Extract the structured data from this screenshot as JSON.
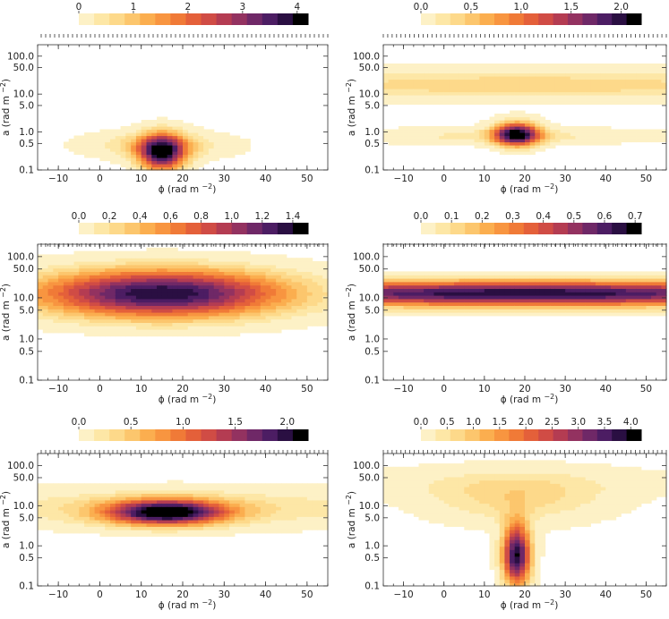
{
  "chart_data": [
    {
      "type": "heatmap",
      "colorbar": {
        "ticks": [
          0,
          1,
          2,
          3,
          4
        ],
        "labels": [
          "0",
          "1",
          "2",
          "3",
          "4"
        ],
        "max": 4.2
      },
      "xlabel": "ϕ  (rad m",
      "xlabel_sup": "−2",
      "xlabel_close": ")",
      "ylabel": "a (rad m",
      "ylabel_sup": "−2",
      "ylabel_close": ")",
      "xlim": [
        -15,
        55
      ],
      "xticks": [
        -10,
        0,
        10,
        20,
        30,
        40,
        50
      ],
      "xtick_labels": [
        "−10",
        "0",
        "10",
        "20",
        "30",
        "40",
        "50"
      ],
      "ylim": [
        0.1,
        200
      ],
      "yticks": [
        0.1,
        0.5,
        1.0,
        5.0,
        10.0,
        50.0,
        100.0
      ],
      "ytick_labels": [
        "0.1",
        "0.5",
        "1.0",
        "5.0",
        "10.0",
        "50.0",
        "100.0"
      ],
      "features": [
        {
          "phi": 15,
          "a": 0.3,
          "peak": 4.0,
          "sphi": 4,
          "sa": 0.35
        },
        {
          "phi": 14,
          "a": 0.45,
          "peak": 1.0,
          "sphi": 12,
          "sa": 0.25
        }
      ]
    },
    {
      "type": "heatmap",
      "colorbar": {
        "ticks": [
          0.0,
          0.5,
          1.0,
          1.5,
          2.0
        ],
        "labels": [
          "0.0",
          "0.5",
          "1.0",
          "1.5",
          "2.0"
        ],
        "max": 2.2
      },
      "xlabel": "ϕ  (rad m",
      "xlabel_sup": "−2",
      "xlabel_close": ")",
      "ylabel": "a (rad m",
      "ylabel_sup": "−2",
      "ylabel_close": ")",
      "xlim": [
        -15,
        55
      ],
      "xticks": [
        -10,
        0,
        10,
        20,
        30,
        40,
        50
      ],
      "xtick_labels": [
        "−10",
        "0",
        "10",
        "20",
        "30",
        "40",
        "50"
      ],
      "ylim": [
        0.1,
        200
      ],
      "yticks": [
        0.1,
        0.5,
        1.0,
        5.0,
        10.0,
        50.0,
        100.0
      ],
      "ytick_labels": [
        "0.1",
        "0.5",
        "1.0",
        "5.0",
        "10.0",
        "50.0",
        "100.0"
      ],
      "features": [
        {
          "phi": 20,
          "a": 18,
          "peak": 0.55,
          "sphi": 60,
          "sa": 0.28
        },
        {
          "phi": 18,
          "a": 0.9,
          "peak": 2.2,
          "sphi": 4,
          "sa": 0.22
        },
        {
          "phi": 15,
          "a": 0.8,
          "peak": 0.35,
          "sphi": 30,
          "sa": 0.15
        }
      ]
    },
    {
      "type": "heatmap",
      "colorbar": {
        "ticks": [
          0.0,
          0.2,
          0.4,
          0.6,
          0.8,
          1.0,
          1.2,
          1.4
        ],
        "labels": [
          "0.0",
          "0.2",
          "0.4",
          "0.6",
          "0.8",
          "1.0",
          "1.2",
          "1.4"
        ],
        "max": 1.5
      },
      "xlabel": "ϕ  (rad m",
      "xlabel_sup": "−2",
      "xlabel_close": ")",
      "ylabel": "a (rad m",
      "ylabel_sup": "−2",
      "ylabel_close": ")",
      "xlim": [
        -15,
        55
      ],
      "xticks": [
        -10,
        0,
        10,
        20,
        30,
        40,
        50
      ],
      "xtick_labels": [
        "−10",
        "0",
        "10",
        "20",
        "30",
        "40",
        "50"
      ],
      "ylim": [
        0.1,
        200
      ],
      "yticks": [
        0.1,
        0.5,
        1.0,
        5.0,
        10.0,
        50.0,
        100.0
      ],
      "ytick_labels": [
        "0.1",
        "0.5",
        "1.0",
        "5.0",
        "10.0",
        "50.0",
        "100.0"
      ],
      "features": [
        {
          "phi": 15,
          "a": 13,
          "peak": 1.5,
          "sphi": 22,
          "sa": 0.42
        }
      ]
    },
    {
      "type": "heatmap",
      "colorbar": {
        "ticks": [
          0.0,
          0.1,
          0.2,
          0.3,
          0.4,
          0.5,
          0.6,
          0.7
        ],
        "labels": [
          "0.0",
          "0.1",
          "0.2",
          "0.3",
          "0.4",
          "0.5",
          "0.6",
          "0.7"
        ],
        "max": 0.72
      },
      "xlabel": "ϕ  (rad m",
      "xlabel_sup": "−2",
      "xlabel_close": ")",
      "ylabel": "a (rad m",
      "ylabel_sup": "−2",
      "ylabel_close": ")",
      "xlim": [
        -15,
        55
      ],
      "xticks": [
        -10,
        0,
        10,
        20,
        30,
        40,
        50
      ],
      "xtick_labels": [
        "−10",
        "0",
        "10",
        "20",
        "30",
        "40",
        "50"
      ],
      "ylim": [
        0.1,
        200
      ],
      "yticks": [
        0.1,
        0.5,
        1.0,
        5.0,
        10.0,
        50.0,
        100.0
      ],
      "ytick_labels": [
        "0.1",
        "0.5",
        "1.0",
        "5.0",
        "10.0",
        "50.0",
        "100.0"
      ],
      "features": [
        {
          "phi": 20,
          "a": 13,
          "peak": 0.72,
          "sphi": 60,
          "sa": 0.22
        }
      ]
    },
    {
      "type": "heatmap",
      "colorbar": {
        "ticks": [
          0.0,
          0.5,
          1.0,
          1.5,
          2.0
        ],
        "labels": [
          "0.0",
          "0.5",
          "1.0",
          "1.5",
          "2.0"
        ],
        "max": 2.2
      },
      "xlabel": "ϕ  (rad m",
      "xlabel_sup": "−2",
      "xlabel_close": ")",
      "ylabel": "a (rad m",
      "ylabel_sup": "−2",
      "ylabel_close": ")",
      "xlim": [
        -15,
        55
      ],
      "xticks": [
        -10,
        0,
        10,
        20,
        30,
        40,
        50
      ],
      "xtick_labels": [
        "−10",
        "0",
        "10",
        "20",
        "30",
        "40",
        "50"
      ],
      "ylim": [
        0.1,
        200
      ],
      "yticks": [
        0.1,
        0.5,
        1.0,
        5.0,
        10.0,
        50.0,
        100.0
      ],
      "ytick_labels": [
        "0.1",
        "0.5",
        "1.0",
        "5.0",
        "10.0",
        "50.0",
        "100.0"
      ],
      "features": [
        {
          "phi": 16,
          "a": 7,
          "peak": 2.2,
          "sphi": 10,
          "sa": 0.22
        },
        {
          "phi": 20,
          "a": 9,
          "peak": 0.45,
          "sphi": 45,
          "sa": 0.35
        }
      ]
    },
    {
      "type": "heatmap",
      "colorbar": {
        "ticks": [
          0.0,
          0.5,
          1.0,
          1.5,
          2.0,
          2.5,
          3.0,
          3.5,
          4.0
        ],
        "labels": [
          "0.0",
          "0.5",
          "1.0",
          "1.5",
          "2.0",
          "2.5",
          "3.0",
          "3.5",
          "4.0"
        ],
        "max": 4.2
      },
      "xlabel": "ϕ  (rad m",
      "xlabel_sup": "−2",
      "xlabel_close": ")",
      "ylabel": "a (rad m",
      "ylabel_sup": "−2",
      "ylabel_close": ")",
      "xlim": [
        -15,
        55
      ],
      "xticks": [
        -10,
        0,
        10,
        20,
        30,
        40,
        50
      ],
      "xtick_labels": [
        "−10",
        "0",
        "10",
        "20",
        "30",
        "40",
        "50"
      ],
      "ylim": [
        0.1,
        200
      ],
      "yticks": [
        0.1,
        0.5,
        1.0,
        5.0,
        10.0,
        50.0,
        100.0
      ],
      "ytick_labels": [
        "0.1",
        "0.5",
        "1.0",
        "5.0",
        "10.0",
        "50.0",
        "100.0"
      ],
      "features": [
        {
          "phi": 18,
          "a": 0.6,
          "peak": 4.2,
          "sphi": 2.5,
          "sa": 0.55
        },
        {
          "phi": 18,
          "a": 15,
          "peak": 0.9,
          "sphi": 16,
          "sa": 0.45
        },
        {
          "phi": 15,
          "a": 40,
          "peak": 0.35,
          "sphi": 40,
          "sa": 0.3
        }
      ]
    }
  ]
}
